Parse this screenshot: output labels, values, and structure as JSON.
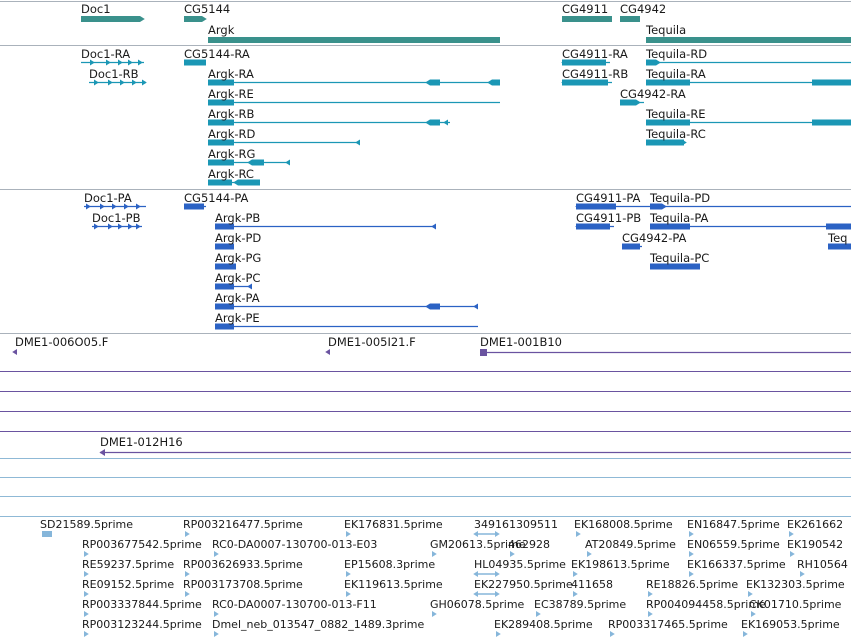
{
  "colors": {
    "gene": "#3a918c",
    "transcript": "#1b97b5",
    "protein": "#2b62c4",
    "clone": "#6a53a0",
    "est": "#86b6da",
    "separator": "#aab2bb",
    "clone_line": "#6a53a0",
    "est_line": "#8fb9d6"
  },
  "genes": [
    {
      "label": "Doc1"
    },
    {
      "label": "CG5144"
    },
    {
      "label": "Argk"
    },
    {
      "label": "CG4911"
    },
    {
      "label": "CG4942"
    },
    {
      "label": "Tequila"
    }
  ],
  "transcripts": [
    {
      "label": "Doc1-RA"
    },
    {
      "label": "Doc1-RB"
    },
    {
      "label": "CG5144-RA"
    },
    {
      "label": "Argk-RA"
    },
    {
      "label": "Argk-RE"
    },
    {
      "label": "Argk-RB"
    },
    {
      "label": "Argk-RD"
    },
    {
      "label": "Argk-RG"
    },
    {
      "label": "Argk-RC"
    },
    {
      "label": "CG4911-RA"
    },
    {
      "label": "CG4911-RB"
    },
    {
      "label": "CG4942-RA"
    },
    {
      "label": "Tequila-RD"
    },
    {
      "label": "Tequila-RA"
    },
    {
      "label": "Tequila-RE"
    },
    {
      "label": "Tequila-RC"
    }
  ],
  "proteins": [
    {
      "label": "Doc1-PA"
    },
    {
      "label": "Doc1-PB"
    },
    {
      "label": "CG5144-PA"
    },
    {
      "label": "Argk-PB"
    },
    {
      "label": "Argk-PD"
    },
    {
      "label": "Argk-PG"
    },
    {
      "label": "Argk-PC"
    },
    {
      "label": "Argk-PA"
    },
    {
      "label": "Argk-PE"
    },
    {
      "label": "CG4911-PA"
    },
    {
      "label": "CG4911-PB"
    },
    {
      "label": "CG4942-PA"
    },
    {
      "label": "Tequila-PD"
    },
    {
      "label": "Tequila-PA"
    },
    {
      "label": "Tequila-PC"
    },
    {
      "label": "Teq"
    }
  ],
  "clones": [
    {
      "label": "DME1-006O05.F"
    },
    {
      "label": "DME1-005I21.F"
    },
    {
      "label": "DME1-001B10"
    },
    {
      "label": "DME1-012H16"
    }
  ],
  "ests": [
    {
      "label": "SD21589.5prime"
    },
    {
      "label": "RP003216477.5prime"
    },
    {
      "label": "EK176831.5prime"
    },
    {
      "label": "349161309511"
    },
    {
      "label": "EK168008.5prime"
    },
    {
      "label": "EN16847.5prime"
    },
    {
      "label": "EK261662"
    },
    {
      "label": "RP003677542.5prime"
    },
    {
      "label": "RC0-DA0007-130700-013-E03"
    },
    {
      "label": "GM20613.5prime"
    },
    {
      "label": "462928"
    },
    {
      "label": "AT20849.5prime"
    },
    {
      "label": "EN06559.5prime"
    },
    {
      "label": "EK190542"
    },
    {
      "label": "RE59237.5prime"
    },
    {
      "label": "RP003626933.5prime"
    },
    {
      "label": "EP15608.3prime"
    },
    {
      "label": "HL04935.5prime"
    },
    {
      "label": "EK198613.5prime"
    },
    {
      "label": "EK166337.5prime"
    },
    {
      "label": "RH10564"
    },
    {
      "label": "RE09152.5prime"
    },
    {
      "label": "RP003173708.5prime"
    },
    {
      "label": "EK119613.5prime"
    },
    {
      "label": "EK227950.5prime"
    },
    {
      "label": "411658"
    },
    {
      "label": "RE18826.5prime"
    },
    {
      "label": "EK132303.5prime"
    },
    {
      "label": "RP003337844.5prime"
    },
    {
      "label": "RC0-DA0007-130700-013-F11"
    },
    {
      "label": "GH06078.5prime"
    },
    {
      "label": "EC38789.5prime"
    },
    {
      "label": "RP004094458.5prime"
    },
    {
      "label": "CK01710.5prime"
    },
    {
      "label": "RP003123244.5prime"
    },
    {
      "label": "Dmel_neb_013547_0882_1489.3prime"
    },
    {
      "label": "EK289408.5prime"
    },
    {
      "label": "RP003317465.5prime"
    },
    {
      "label": "EK169053.5prime"
    }
  ]
}
